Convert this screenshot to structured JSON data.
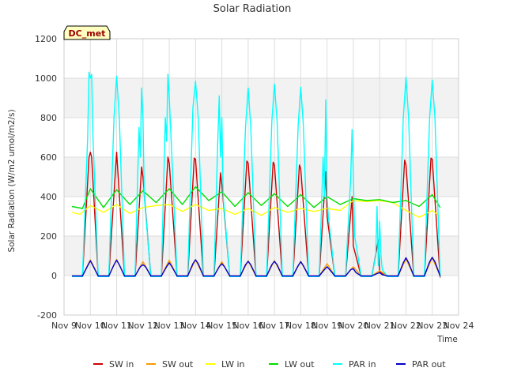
{
  "chart_data": {
    "type": "line",
    "title": "Solar Radiation",
    "xlabel": "Time",
    "ylabel": "Solar Radiation (W/m2 umol/m2/s)",
    "site_label": "DC_met",
    "ylim": [
      -200,
      1200
    ],
    "yticks": [
      -200,
      0,
      200,
      400,
      600,
      800,
      1000,
      1200
    ],
    "xlim": [
      9,
      24
    ],
    "xticks": [
      9,
      10,
      11,
      12,
      13,
      14,
      15,
      16,
      17,
      18,
      19,
      20,
      21,
      22,
      23,
      24
    ],
    "xtick_labels": [
      "Nov 9",
      "Nov 10",
      "Nov 11",
      "Nov 12",
      "Nov 13",
      "Nov 14",
      "Nov 15",
      "Nov 16",
      "Nov 17",
      "Nov 18",
      "Nov 19",
      "Nov 20",
      "Nov 21",
      "Nov 22",
      "Nov 23",
      "Nov 24"
    ],
    "grid": true,
    "legend_position": "bottom",
    "series": [
      {
        "name": "SW in",
        "color": "#cc0000",
        "x": [
          9.3,
          9.7,
          9.95,
          10.0,
          10.05,
          10.3,
          10.7,
          11.0,
          11.3,
          11.7,
          11.95,
          12.0,
          12.3,
          12.7,
          12.95,
          13.0,
          13.3,
          13.7,
          13.95,
          14.0,
          14.3,
          14.7,
          14.95,
          15.0,
          15.3,
          15.7,
          15.95,
          16.0,
          16.3,
          16.7,
          16.95,
          17.0,
          17.3,
          17.7,
          17.95,
          18.0,
          18.3,
          18.7,
          18.95,
          19.0,
          19.3,
          19.7,
          19.95,
          20.0,
          20.3,
          20.7,
          20.95,
          21.0,
          21.3,
          21.7,
          21.95,
          22.0,
          22.3,
          22.7,
          22.95,
          23.0,
          23.3
        ],
        "y": [
          -5,
          -5,
          600,
          625,
          600,
          -5,
          -5,
          625,
          -5,
          -5,
          550,
          500,
          -5,
          -5,
          600,
          570,
          -5,
          -5,
          595,
          590,
          -5,
          -5,
          520,
          460,
          -5,
          -5,
          580,
          570,
          -5,
          -5,
          575,
          560,
          -5,
          -5,
          560,
          540,
          -5,
          -5,
          525,
          300,
          -5,
          -5,
          400,
          150,
          -5,
          -5,
          180,
          20,
          -5,
          -5,
          585,
          560,
          -5,
          -5,
          595,
          590,
          -10
        ]
      },
      {
        "name": "SW out",
        "color": "#ff9900",
        "x": [
          9.3,
          9.7,
          10.0,
          10.3,
          10.7,
          11.0,
          11.3,
          11.7,
          12.0,
          12.3,
          12.7,
          13.0,
          13.3,
          13.7,
          14.0,
          14.3,
          14.7,
          15.0,
          15.3,
          15.7,
          16.0,
          16.3,
          16.7,
          17.0,
          17.3,
          17.7,
          18.0,
          18.3,
          18.7,
          19.0,
          19.3,
          19.7,
          20.0,
          20.3,
          20.7,
          21.0,
          21.3,
          21.7,
          22.0,
          22.3,
          22.7,
          23.0,
          23.3
        ],
        "y": [
          -2,
          -2,
          80,
          -2,
          -2,
          82,
          -2,
          -2,
          70,
          -2,
          -2,
          78,
          -2,
          -2,
          80,
          -2,
          -2,
          70,
          -2,
          -2,
          75,
          -2,
          -2,
          76,
          -2,
          -2,
          72,
          -2,
          -2,
          60,
          -2,
          -2,
          45,
          -2,
          -2,
          25,
          -2,
          -2,
          85,
          -2,
          -2,
          90,
          -2
        ]
      },
      {
        "name": "LW in",
        "color": "#ffff00",
        "x": [
          9.3,
          9.6,
          10.0,
          10.5,
          11.0,
          11.5,
          12.0,
          12.5,
          13.0,
          13.5,
          14.0,
          14.5,
          15.0,
          15.5,
          16.0,
          16.5,
          17.0,
          17.5,
          18.0,
          18.5,
          19.0,
          19.5,
          20.0,
          20.5,
          21.0,
          21.5,
          22.0,
          22.5,
          23.0,
          23.3
        ],
        "y": [
          320,
          310,
          355,
          320,
          360,
          315,
          345,
          355,
          360,
          325,
          360,
          330,
          340,
          310,
          340,
          305,
          345,
          320,
          340,
          325,
          340,
          330,
          380,
          375,
          380,
          370,
          330,
          295,
          330,
          300
        ]
      },
      {
        "name": "LW out",
        "color": "#00dd00",
        "x": [
          9.3,
          9.7,
          10.0,
          10.5,
          11.0,
          11.5,
          12.0,
          12.5,
          13.0,
          13.5,
          14.0,
          14.5,
          15.0,
          15.5,
          16.0,
          16.5,
          17.0,
          17.5,
          18.0,
          18.5,
          19.0,
          19.5,
          20.0,
          20.5,
          21.0,
          21.5,
          22.0,
          22.5,
          23.0,
          23.3
        ],
        "y": [
          350,
          340,
          440,
          345,
          435,
          360,
          430,
          370,
          440,
          360,
          450,
          380,
          425,
          350,
          420,
          355,
          415,
          350,
          410,
          345,
          400,
          360,
          390,
          380,
          385,
          370,
          380,
          350,
          410,
          345
        ]
      },
      {
        "name": "PAR in",
        "color": "#00ffff",
        "x": [
          9.3,
          9.7,
          9.9,
          9.95,
          10.0,
          10.05,
          10.1,
          10.3,
          10.7,
          10.9,
          11.0,
          11.1,
          11.3,
          11.7,
          11.85,
          11.9,
          11.95,
          12.0,
          12.05,
          12.3,
          12.7,
          12.85,
          12.9,
          12.95,
          13.0,
          13.1,
          13.3,
          13.7,
          13.9,
          14.0,
          14.1,
          14.3,
          14.7,
          14.85,
          14.9,
          14.95,
          15.0,
          15.05,
          15.3,
          15.7,
          15.9,
          16.0,
          16.1,
          16.3,
          16.7,
          16.9,
          17.0,
          17.1,
          17.3,
          17.7,
          17.9,
          18.0,
          18.1,
          18.3,
          18.7,
          18.85,
          18.9,
          18.95,
          19.0,
          19.05,
          19.3,
          19.7,
          19.9,
          19.95,
          20.0,
          20.05,
          20.3,
          20.7,
          20.85,
          20.9,
          20.95,
          21.0,
          21.05,
          21.1,
          21.3,
          21.7,
          21.9,
          22.0,
          22.1,
          22.3,
          22.7,
          22.9,
          23.0,
          23.1,
          23.3
        ],
        "y": [
          -5,
          -5,
          700,
          1030,
          1000,
          1020,
          700,
          -5,
          -5,
          800,
          1010,
          800,
          -5,
          -5,
          750,
          600,
          950,
          800,
          400,
          -5,
          -5,
          800,
          680,
          1020,
          900,
          600,
          -5,
          -5,
          850,
          985,
          800,
          -5,
          -5,
          700,
          910,
          600,
          800,
          400,
          -5,
          -5,
          750,
          950,
          750,
          -5,
          -5,
          780,
          970,
          780,
          -5,
          -5,
          760,
          955,
          760,
          -5,
          -5,
          600,
          400,
          890,
          400,
          300,
          -5,
          -5,
          500,
          740,
          500,
          200,
          -5,
          -5,
          100,
          350,
          50,
          275,
          100,
          30,
          -5,
          -5,
          800,
          1005,
          800,
          -5,
          -5,
          800,
          990,
          800,
          -5
        ]
      },
      {
        "name": "PAR out",
        "color": "#0000cc",
        "x": [
          9.3,
          9.7,
          9.9,
          10.0,
          10.1,
          10.3,
          10.7,
          10.9,
          11.0,
          11.1,
          11.3,
          11.7,
          11.9,
          12.0,
          12.1,
          12.3,
          12.7,
          12.9,
          13.0,
          13.1,
          13.3,
          13.7,
          13.9,
          14.0,
          14.1,
          14.3,
          14.7,
          14.9,
          15.0,
          15.1,
          15.3,
          15.7,
          15.9,
          16.0,
          16.1,
          16.3,
          16.7,
          16.9,
          17.0,
          17.1,
          17.3,
          17.7,
          17.9,
          18.0,
          18.1,
          18.3,
          18.7,
          18.9,
          19.0,
          19.1,
          19.3,
          19.7,
          19.9,
          20.0,
          20.1,
          20.3,
          20.7,
          20.9,
          21.0,
          21.1,
          21.3,
          21.7,
          21.9,
          22.0,
          22.1,
          22.3,
          22.7,
          22.9,
          23.0,
          23.1,
          23.3
        ],
        "y": [
          -2,
          -2,
          50,
          75,
          50,
          -2,
          -2,
          55,
          78,
          55,
          -2,
          -2,
          45,
          55,
          45,
          -2,
          -2,
          45,
          65,
          45,
          -2,
          -2,
          60,
          80,
          60,
          -2,
          -2,
          45,
          60,
          45,
          -2,
          -2,
          55,
          72,
          55,
          -2,
          -2,
          55,
          72,
          55,
          -2,
          -2,
          50,
          70,
          50,
          -2,
          -2,
          30,
          45,
          30,
          -2,
          -2,
          30,
          35,
          15,
          -2,
          -2,
          10,
          15,
          5,
          -2,
          -2,
          65,
          90,
          65,
          -2,
          -2,
          70,
          92,
          70,
          -2
        ]
      }
    ]
  }
}
